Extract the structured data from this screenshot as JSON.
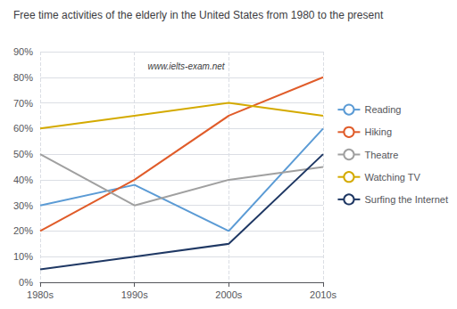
{
  "chart_data": {
    "type": "line",
    "title": "Free time activities of the elderly in the United States from 1980 to the present",
    "annotation": "www.ielts-exam.net",
    "categories": [
      "1980s",
      "1990s",
      "2000s",
      "2010s"
    ],
    "series": [
      {
        "name": "Reading",
        "color": "#5B9BD5",
        "values": [
          30,
          38,
          20,
          60
        ]
      },
      {
        "name": "Hiking",
        "color": "#E05C2A",
        "values": [
          20,
          40,
          65,
          80
        ]
      },
      {
        "name": "Theatre",
        "color": "#A0A0A0",
        "values": [
          50,
          30,
          40,
          45
        ]
      },
      {
        "name": "Watching TV",
        "color": "#D4AA00",
        "values": [
          60,
          65,
          70,
          65
        ]
      },
      {
        "name": "Surfing the Internet",
        "color": "#1F3864",
        "values": [
          5,
          10,
          15,
          50
        ]
      }
    ],
    "ylim": [
      0,
      90
    ],
    "yticks": [
      {
        "value": 0,
        "label": "0%"
      },
      {
        "value": 10,
        "label": "10%"
      },
      {
        "value": 20,
        "label": "20%"
      },
      {
        "value": 30,
        "label": "30%"
      },
      {
        "value": 40,
        "label": "40%"
      },
      {
        "value": 50,
        "label": "50%"
      },
      {
        "value": 60,
        "label": "60%"
      },
      {
        "value": 70,
        "label": "70%"
      },
      {
        "value": 80,
        "label": "80%"
      },
      {
        "value": 90,
        "label": "90%"
      }
    ],
    "grid": true,
    "legend": "right"
  }
}
